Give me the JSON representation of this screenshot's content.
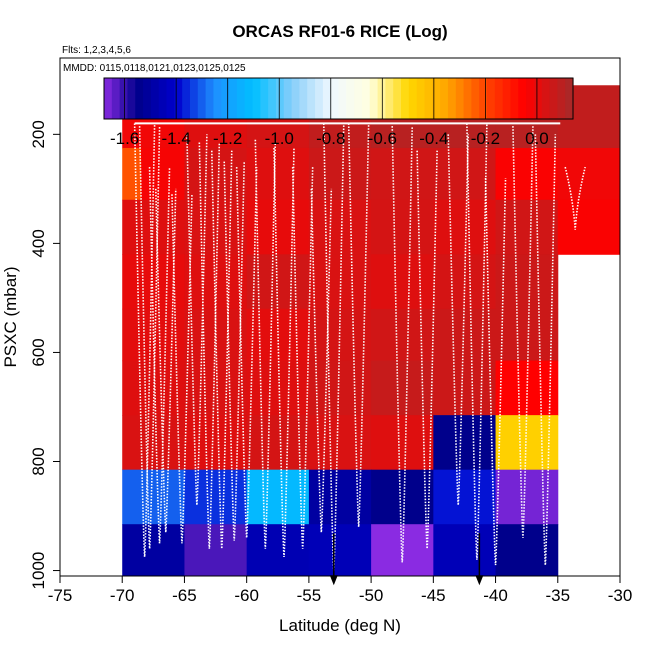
{
  "chart_data": {
    "type": "heatmap",
    "title": "ORCAS RF01-6 RICE (Log)",
    "flights_note": "Flts: 1,2,3,4,5,6",
    "dates_note": "MMDD: 0115,0118,0121,0123,0125,0125",
    "xlabel": "Latitude (deg N)",
    "ylabel": "PSXC (mbar)",
    "xlim": [
      -75,
      -30
    ],
    "ylim": [
      1010,
      60
    ],
    "x_ticks": [
      -75,
      -70,
      -65,
      -60,
      -55,
      -50,
      -45,
      -40,
      -35,
      -30
    ],
    "y_ticks": [
      200,
      400,
      600,
      800,
      1000
    ],
    "colorbar": {
      "range": [
        -1.68,
        0.14
      ],
      "ticks": [
        -1.6,
        -1.4,
        -1.2,
        -1.0,
        -0.8,
        -0.6,
        -0.4,
        -0.2,
        0.0
      ],
      "stops": [
        [
          -1.68,
          "#8a2be2"
        ],
        [
          -1.55,
          "#00008b"
        ],
        [
          -1.4,
          "#0000cd"
        ],
        [
          -1.25,
          "#1e90ff"
        ],
        [
          -1.1,
          "#00bfff"
        ],
        [
          -0.95,
          "#87cefa"
        ],
        [
          -0.8,
          "#f0f8ff"
        ],
        [
          -0.65,
          "#ffffe0"
        ],
        [
          -0.5,
          "#ffd700"
        ],
        [
          -0.35,
          "#ffa500"
        ],
        [
          -0.2,
          "#ff4500"
        ],
        [
          -0.05,
          "#ff0000"
        ],
        [
          0.14,
          "#a52a2a"
        ]
      ]
    },
    "cells": [
      {
        "lat": [
          -70,
          -65
        ],
        "p": [
          110,
          225
        ],
        "value": -0.02
      },
      {
        "lat": [
          -65,
          -60
        ],
        "p": [
          110,
          225
        ],
        "value": 0.02
      },
      {
        "lat": [
          -60,
          -55
        ],
        "p": [
          110,
          225
        ],
        "value": 0.04
      },
      {
        "lat": [
          -55,
          -50
        ],
        "p": [
          110,
          225
        ],
        "value": 0.08
      },
      {
        "lat": [
          -50,
          -45
        ],
        "p": [
          110,
          225
        ],
        "value": 0.1
      },
      {
        "lat": [
          -45,
          -40
        ],
        "p": [
          110,
          225
        ],
        "value": 0.1
      },
      {
        "lat": [
          -40,
          -35
        ],
        "p": [
          110,
          225
        ],
        "value": 0.1
      },
      {
        "lat": [
          -35,
          -30
        ],
        "p": [
          110,
          225
        ],
        "value": 0.08
      },
      {
        "lat": [
          -70,
          -68.5
        ],
        "p": [
          225,
          320
        ],
        "value": -0.22
      },
      {
        "lat": [
          -68.5,
          -65
        ],
        "p": [
          225,
          320
        ],
        "value": -0.03
      },
      {
        "lat": [
          -65,
          -60
        ],
        "p": [
          225,
          320
        ],
        "value": 0.04
      },
      {
        "lat": [
          -60,
          -55
        ],
        "p": [
          225,
          320
        ],
        "value": 0.02
      },
      {
        "lat": [
          -55,
          -50
        ],
        "p": [
          225,
          320
        ],
        "value": 0.06
      },
      {
        "lat": [
          -50,
          -45
        ],
        "p": [
          225,
          320
        ],
        "value": 0.05
      },
      {
        "lat": [
          -45,
          -40
        ],
        "p": [
          225,
          320
        ],
        "value": 0.05
      },
      {
        "lat": [
          -40,
          -35
        ],
        "p": [
          225,
          320
        ],
        "value": -0.04
      },
      {
        "lat": [
          -35,
          -30
        ],
        "p": [
          225,
          320
        ],
        "value": -0.02
      },
      {
        "lat": [
          -70,
          -65
        ],
        "p": [
          320,
          420
        ],
        "value": 0.02
      },
      {
        "lat": [
          -65,
          -60
        ],
        "p": [
          320,
          420
        ],
        "value": 0.03
      },
      {
        "lat": [
          -60,
          -55
        ],
        "p": [
          320,
          420
        ],
        "value": 0.0
      },
      {
        "lat": [
          -55,
          -50
        ],
        "p": [
          320,
          420
        ],
        "value": 0.03
      },
      {
        "lat": [
          -50,
          -45
        ],
        "p": [
          320,
          420
        ],
        "value": 0.04
      },
      {
        "lat": [
          -45,
          -40
        ],
        "p": [
          320,
          420
        ],
        "value": 0.02
      },
      {
        "lat": [
          -40,
          -35
        ],
        "p": [
          320,
          420
        ],
        "value": 0.05
      },
      {
        "lat": [
          -35,
          -30
        ],
        "p": [
          320,
          420
        ],
        "value": -0.04
      },
      {
        "lat": [
          -70,
          -65
        ],
        "p": [
          420,
          520
        ],
        "value": 0.0
      },
      {
        "lat": [
          -65,
          -60
        ],
        "p": [
          420,
          520
        ],
        "value": 0.02
      },
      {
        "lat": [
          -60,
          -55
        ],
        "p": [
          420,
          520
        ],
        "value": 0.05
      },
      {
        "lat": [
          -55,
          -50
        ],
        "p": [
          420,
          520
        ],
        "value": 0.03
      },
      {
        "lat": [
          -50,
          -45
        ],
        "p": [
          420,
          520
        ],
        "value": 0.02
      },
      {
        "lat": [
          -45,
          -40
        ],
        "p": [
          420,
          520
        ],
        "value": 0.04
      },
      {
        "lat": [
          -40,
          -35
        ],
        "p": [
          420,
          520
        ],
        "value": 0.06
      },
      {
        "lat": [
          -70,
          -65
        ],
        "p": [
          520,
          615
        ],
        "value": 0.01
      },
      {
        "lat": [
          -65,
          -60
        ],
        "p": [
          520,
          615
        ],
        "value": 0.03
      },
      {
        "lat": [
          -60,
          -55
        ],
        "p": [
          520,
          615
        ],
        "value": 0.01
      },
      {
        "lat": [
          -55,
          -50
        ],
        "p": [
          520,
          615
        ],
        "value": 0.04
      },
      {
        "lat": [
          -50,
          -45
        ],
        "p": [
          520,
          615
        ],
        "value": 0.05
      },
      {
        "lat": [
          -45,
          -40
        ],
        "p": [
          520,
          615
        ],
        "value": 0.06
      },
      {
        "lat": [
          -40,
          -35
        ],
        "p": [
          520,
          615
        ],
        "value": 0.06
      },
      {
        "lat": [
          -70,
          -65
        ],
        "p": [
          615,
          715
        ],
        "value": 0.02
      },
      {
        "lat": [
          -65,
          -60
        ],
        "p": [
          615,
          715
        ],
        "value": 0.03
      },
      {
        "lat": [
          -60,
          -55
        ],
        "p": [
          615,
          715
        ],
        "value": 0.02
      },
      {
        "lat": [
          -55,
          -50
        ],
        "p": [
          615,
          715
        ],
        "value": 0.05
      },
      {
        "lat": [
          -50,
          -45
        ],
        "p": [
          615,
          715
        ],
        "value": 0.07
      },
      {
        "lat": [
          -45,
          -40
        ],
        "p": [
          615,
          715
        ],
        "value": 0.06
      },
      {
        "lat": [
          -40,
          -35
        ],
        "p": [
          615,
          715
        ],
        "value": -0.05
      },
      {
        "lat": [
          -70,
          -65
        ],
        "p": [
          715,
          815
        ],
        "value": 0.03
      },
      {
        "lat": [
          -65,
          -60
        ],
        "p": [
          715,
          815
        ],
        "value": 0.02
      },
      {
        "lat": [
          -60,
          -55
        ],
        "p": [
          715,
          815
        ],
        "value": 0.04
      },
      {
        "lat": [
          -55,
          -50
        ],
        "p": [
          715,
          815
        ],
        "value": 0.03
      },
      {
        "lat": [
          -50,
          -45
        ],
        "p": [
          715,
          815
        ],
        "value": 0.02
      },
      {
        "lat": [
          -45,
          -40
        ],
        "p": [
          715,
          815
        ],
        "value": -1.55
      },
      {
        "lat": [
          -40,
          -35
        ],
        "p": [
          715,
          815
        ],
        "value": -0.48
      },
      {
        "lat": [
          -70,
          -65
        ],
        "p": [
          815,
          915
        ],
        "value": -1.3
      },
      {
        "lat": [
          -65,
          -60
        ],
        "p": [
          815,
          915
        ],
        "value": -1.35
      },
      {
        "lat": [
          -60,
          -55
        ],
        "p": [
          815,
          915
        ],
        "value": -1.12
      },
      {
        "lat": [
          -55,
          -50
        ],
        "p": [
          815,
          915
        ],
        "value": -1.5
      },
      {
        "lat": [
          -50,
          -45
        ],
        "p": [
          815,
          915
        ],
        "value": -1.55
      },
      {
        "lat": [
          -45,
          -40
        ],
        "p": [
          815,
          915
        ],
        "value": -1.38
      },
      {
        "lat": [
          -40,
          -35
        ],
        "p": [
          815,
          915
        ],
        "value": -1.66
      },
      {
        "lat": [
          -70,
          -65
        ],
        "p": [
          915,
          1010
        ],
        "value": -1.5
      },
      {
        "lat": [
          -65,
          -60
        ],
        "p": [
          915,
          1010
        ],
        "value": -1.62
      },
      {
        "lat": [
          -60,
          -55
        ],
        "p": [
          915,
          1010
        ],
        "value": -1.46
      },
      {
        "lat": [
          -55,
          -50
        ],
        "p": [
          915,
          1010
        ],
        "value": -1.45
      },
      {
        "lat": [
          -50,
          -45
        ],
        "p": [
          915,
          1010
        ],
        "value": -1.68
      },
      {
        "lat": [
          -45,
          -40
        ],
        "p": [
          915,
          1010
        ],
        "value": -1.45
      },
      {
        "lat": [
          -40,
          -35
        ],
        "p": [
          915,
          1010
        ],
        "value": -1.55
      }
    ],
    "profiles": [
      {
        "lat": -68.2,
        "p_top": 180,
        "p_bottom": 975
      },
      {
        "lat": -67.8,
        "p_top": 185,
        "p_bottom": 960
      },
      {
        "lat": -67.0,
        "p_top": 260,
        "p_bottom": 950
      },
      {
        "lat": -66.5,
        "p_top": 300,
        "p_bottom": 930
      },
      {
        "lat": -65.2,
        "p_top": 310,
        "p_bottom": 950
      },
      {
        "lat": -64.0,
        "p_top": 200,
        "p_bottom": 880
      },
      {
        "lat": -63.0,
        "p_top": 215,
        "p_bottom": 960
      },
      {
        "lat": -62.0,
        "p_top": 230,
        "p_bottom": 960
      },
      {
        "lat": -61.0,
        "p_top": 250,
        "p_bottom": 945
      },
      {
        "lat": -60.0,
        "p_top": 260,
        "p_bottom": 940
      },
      {
        "lat": -58.5,
        "p_top": 210,
        "p_bottom": 960
      },
      {
        "lat": -57.0,
        "p_top": 225,
        "p_bottom": 975
      },
      {
        "lat": -55.5,
        "p_top": 260,
        "p_bottom": 960
      },
      {
        "lat": -54.0,
        "p_top": 300,
        "p_bottom": 930
      },
      {
        "lat": -53.0,
        "p_top": 180,
        "p_bottom": 1000
      },
      {
        "lat": -51.0,
        "p_top": 180,
        "p_bottom": 920
      },
      {
        "lat": -47.5,
        "p_top": 185,
        "p_bottom": 985
      },
      {
        "lat": -45.5,
        "p_top": 230,
        "p_bottom": 960
      },
      {
        "lat": -43.0,
        "p_top": 200,
        "p_bottom": 880
      },
      {
        "lat": -41.5,
        "p_top": 180,
        "p_bottom": 980
      },
      {
        "lat": -40.0,
        "p_top": 280,
        "p_bottom": 990
      },
      {
        "lat": -37.8,
        "p_top": 185,
        "p_bottom": 940
      },
      {
        "lat": -36.0,
        "p_top": 200,
        "p_bottom": 990
      },
      {
        "lat": -33.6,
        "p_top": 260,
        "p_bottom": 375
      }
    ],
    "flight_level_p": 180,
    "flight_level_lat": [
      -69.0,
      -34.8
    ],
    "markers": [
      {
        "lat": -53.0,
        "p": 1005
      },
      {
        "lat": -41.3,
        "p": 1005
      }
    ]
  }
}
